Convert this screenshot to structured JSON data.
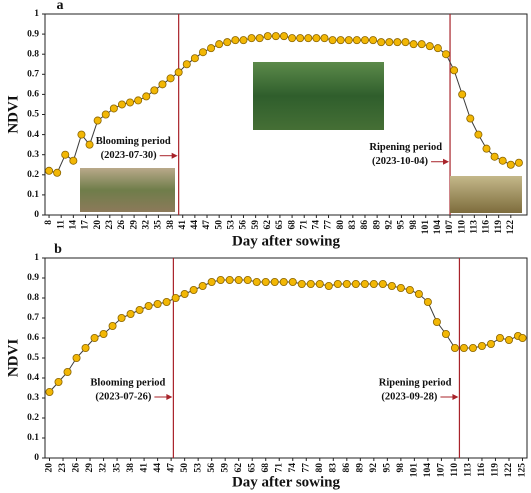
{
  "chart_data": [
    {
      "type": "line",
      "panel": "a",
      "xlabel": "Day after sowing",
      "ylabel": "NDVI",
      "x": [
        8,
        10,
        12,
        14,
        16,
        18,
        20,
        22,
        24,
        26,
        28,
        30,
        32,
        34,
        36,
        38,
        40,
        42,
        44,
        46,
        48,
        50,
        52,
        54,
        56,
        58,
        60,
        62,
        64,
        66,
        68,
        70,
        72,
        74,
        76,
        78,
        80,
        82,
        84,
        86,
        88,
        90,
        92,
        94,
        96,
        98,
        100,
        102,
        104,
        106,
        108,
        110,
        112,
        114,
        116,
        118,
        120,
        122,
        124
      ],
      "series": [
        {
          "color": "#f2b705",
          "values": [
            0.22,
            0.21,
            0.3,
            0.27,
            0.4,
            0.35,
            0.47,
            0.5,
            0.53,
            0.55,
            0.56,
            0.57,
            0.59,
            0.62,
            0.65,
            0.68,
            0.71,
            0.75,
            0.78,
            0.81,
            0.83,
            0.85,
            0.86,
            0.87,
            0.87,
            0.88,
            0.88,
            0.89,
            0.89,
            0.89,
            0.88,
            0.88,
            0.88,
            0.88,
            0.88,
            0.87,
            0.87,
            0.87,
            0.87,
            0.87,
            0.87,
            0.86,
            0.86,
            0.86,
            0.86,
            0.85,
            0.85,
            0.84,
            0.83,
            0.8,
            0.72,
            0.6,
            0.48,
            0.4,
            0.33,
            0.29,
            0.27,
            0.25,
            0.26
          ]
        }
      ],
      "xlim": [
        7,
        126
      ],
      "xticks": [
        8,
        11,
        14,
        17,
        20,
        23,
        26,
        29,
        32,
        35,
        38,
        41,
        44,
        47,
        50,
        53,
        56,
        59,
        62,
        65,
        68,
        71,
        74,
        77,
        80,
        83,
        86,
        89,
        92,
        95,
        98,
        101,
        104,
        107,
        110,
        113,
        116,
        119,
        122
      ],
      "ylim": [
        0,
        1
      ],
      "yticks": [
        0,
        0.1,
        0.2,
        0.3,
        0.4,
        0.5,
        0.6,
        0.7,
        0.8,
        0.9,
        1
      ],
      "markers": [
        {
          "x": 40,
          "label": "Blooming period",
          "date": "(2023-07-30)"
        },
        {
          "x": 107,
          "label": "Ripening period",
          "date": "(2023-10-04)"
        }
      ],
      "marker_color": "#a8232a"
    },
    {
      "type": "line",
      "panel": "b",
      "xlabel": "Day after sowing",
      "ylabel": "NDVI",
      "x": [
        20,
        22,
        24,
        26,
        28,
        30,
        32,
        34,
        36,
        38,
        40,
        42,
        44,
        46,
        48,
        50,
        52,
        54,
        56,
        58,
        60,
        62,
        64,
        66,
        68,
        70,
        72,
        74,
        76,
        78,
        80,
        82,
        84,
        86,
        88,
        90,
        92,
        94,
        96,
        98,
        100,
        102,
        104,
        106,
        108,
        110,
        112,
        114,
        116,
        118,
        120,
        122,
        124,
        125
      ],
      "series": [
        {
          "color": "#f2b705",
          "values": [
            0.33,
            0.38,
            0.43,
            0.5,
            0.55,
            0.6,
            0.62,
            0.66,
            0.7,
            0.72,
            0.74,
            0.76,
            0.77,
            0.78,
            0.8,
            0.82,
            0.84,
            0.86,
            0.88,
            0.89,
            0.89,
            0.89,
            0.89,
            0.88,
            0.88,
            0.88,
            0.88,
            0.88,
            0.87,
            0.87,
            0.87,
            0.86,
            0.87,
            0.87,
            0.87,
            0.87,
            0.87,
            0.87,
            0.86,
            0.85,
            0.84,
            0.82,
            0.78,
            0.68,
            0.62,
            0.55,
            0.55,
            0.55,
            0.56,
            0.57,
            0.6,
            0.59,
            0.61,
            0.6
          ]
        }
      ],
      "xlim": [
        19,
        126
      ],
      "xticks": [
        20,
        23,
        26,
        29,
        32,
        35,
        38,
        41,
        44,
        47,
        50,
        53,
        56,
        59,
        62,
        65,
        68,
        71,
        74,
        77,
        80,
        83,
        86,
        89,
        92,
        95,
        98,
        101,
        104,
        107,
        110,
        113,
        116,
        119,
        122,
        125
      ],
      "ylim": [
        0,
        1
      ],
      "yticks": [
        0,
        0.1,
        0.2,
        0.3,
        0.4,
        0.5,
        0.6,
        0.7,
        0.8,
        0.9,
        1
      ],
      "markers": [
        {
          "x": 47.5,
          "label": "Blooming period",
          "date": "(2023-07-26)"
        },
        {
          "x": 111,
          "label": "Ripening period",
          "date": "(2023-09-28)"
        }
      ],
      "marker_color": "#a8232a"
    }
  ]
}
